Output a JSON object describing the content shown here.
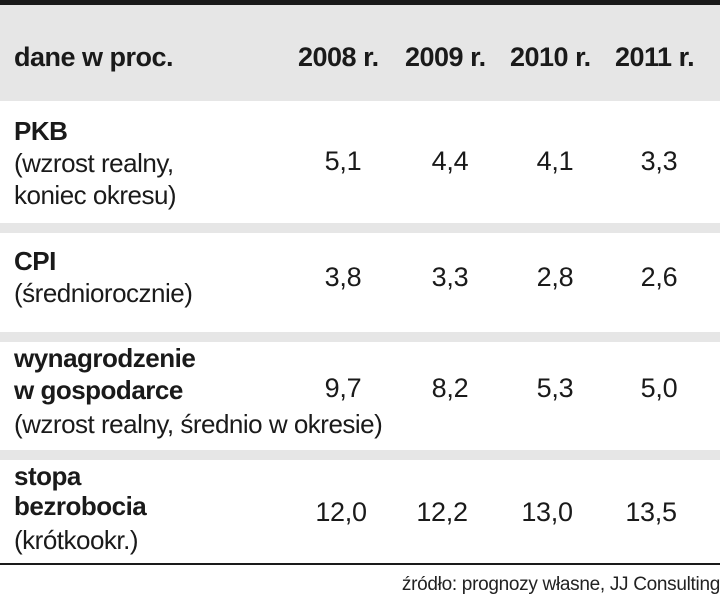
{
  "header": {
    "label": "dane w proc.",
    "years": [
      "2008 r.",
      "2009 r.",
      "2010 r.",
      "2011 r."
    ]
  },
  "rows": [
    {
      "title": "PKB",
      "sub1": "(wzrost realny,",
      "sub2": "koniec okresu)",
      "values": [
        "5,1",
        "4,4",
        "4,1",
        "3,3"
      ]
    },
    {
      "title": "CPI",
      "sub1": "(średniorocznie)",
      "values": [
        "3,8",
        "3,3",
        "2,8",
        "2,6"
      ]
    },
    {
      "title1": "wynagrodzenie",
      "title2": "w gospodarce",
      "sub1": "(wzrost realny, średnio w okresie)",
      "values": [
        "9,7",
        "8,2",
        "5,3",
        "5,0"
      ]
    },
    {
      "title1": "stopa",
      "title2": "bezrobocia",
      "sub1": "(krótkookr.)",
      "values": [
        "12,0",
        "12,2",
        "13,0",
        "13,5"
      ]
    }
  ],
  "source": "źródło: prognozy własne, JJ Consulting",
  "colors": {
    "header_bg": "#e6e6e6",
    "line": "#1a1a1a",
    "text": "#1a1a1a"
  }
}
